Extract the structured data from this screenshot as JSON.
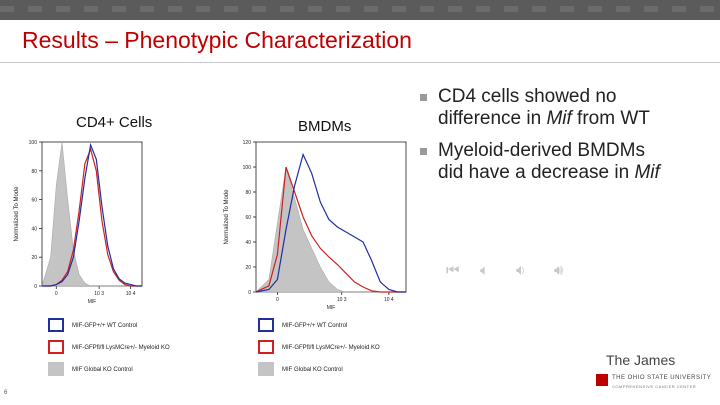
{
  "slide": {
    "title": "Results – Phenotypic Characterization",
    "number": "6"
  },
  "panels": {
    "left_label": "CD4+ Cells",
    "right_label": "BMDMs"
  },
  "bullets": [
    {
      "text": "CD4 cells showed no\ndifference in ",
      "emph": "Mif",
      "tail": " from WT"
    },
    {
      "text": "Myeloid-derived BMDMs\ndid have a decrease in ",
      "emph": "Mif",
      "tail": ""
    }
  ],
  "chart_data": [
    {
      "type": "area",
      "ylabel": "Normalized To Mode",
      "xlabel": "MIF",
      "xscale": "log",
      "x_ticks": [
        "0",
        "10 3",
        "10 4"
      ],
      "y_ticks": [
        "0",
        "20",
        "40",
        "60",
        "80",
        "100"
      ],
      "ylim": [
        0,
        100
      ],
      "x": [
        -0.5,
        -0.2,
        0.0,
        0.2,
        0.4,
        0.6,
        0.8,
        1.0,
        1.2,
        1.4,
        1.6,
        1.8,
        2.0,
        2.2,
        2.4,
        2.6,
        2.8,
        3.0
      ],
      "series": [
        {
          "name": "MIF-GFP+/+ WT Control",
          "color": "#1f2fa0",
          "values": [
            0,
            0,
            1,
            3,
            8,
            20,
            45,
            75,
            98,
            88,
            55,
            28,
            12,
            5,
            2,
            1,
            0,
            0
          ]
        },
        {
          "name": "MIF-GFPfl/fl LysMCre+/- Myeloid KO",
          "color": "#d11f1f",
          "values": [
            0,
            0,
            1,
            4,
            10,
            25,
            52,
            85,
            95,
            80,
            45,
            22,
            10,
            4,
            1,
            0,
            0,
            0
          ]
        },
        {
          "name": "MIF Global KO Control",
          "color": "#c4c4c4",
          "values": [
            0,
            20,
            70,
            100,
            60,
            25,
            8,
            2,
            0,
            0,
            0,
            0,
            0,
            0,
            0,
            0,
            0,
            0
          ]
        }
      ]
    },
    {
      "type": "area",
      "ylabel": "Normalized To Mode",
      "xlabel": "MIF",
      "xscale": "log",
      "x_ticks": [
        "0",
        "10 3",
        "10 4"
      ],
      "y_ticks": [
        "0",
        "20",
        "40",
        "60",
        "80",
        "100",
        "120"
      ],
      "ylim": [
        0,
        120
      ],
      "x": [
        -0.5,
        -0.2,
        0.0,
        0.2,
        0.4,
        0.6,
        0.8,
        1.0,
        1.2,
        1.4,
        1.6,
        1.8,
        2.0,
        2.2,
        2.4,
        2.6,
        2.8,
        3.0
      ],
      "series": [
        {
          "name": "MIF-GFP+/+ WT Control",
          "color": "#1f2fa0",
          "values": [
            0,
            2,
            10,
            50,
            85,
            110,
            95,
            72,
            58,
            52,
            48,
            44,
            40,
            25,
            8,
            2,
            0,
            0
          ]
        },
        {
          "name": "MIF-GFPfl/fl LysMCre+/- Myeloid KO",
          "color": "#d11f1f",
          "values": [
            0,
            5,
            30,
            100,
            80,
            60,
            45,
            35,
            28,
            22,
            15,
            8,
            4,
            1,
            0,
            0,
            0,
            0
          ]
        },
        {
          "name": "MIF Global KO Control",
          "color": "#c4c4c4",
          "values": [
            0,
            10,
            55,
            100,
            75,
            50,
            35,
            20,
            8,
            2,
            0,
            0,
            0,
            0,
            0,
            0,
            0,
            0
          ]
        }
      ]
    }
  ],
  "legend": [
    {
      "label": "MIF-GFP+/+ WT Control",
      "color": "#1f2fa0",
      "filled": false
    },
    {
      "label": "MIF-GFPfl/fl LysMCre+/- Myeloid KO",
      "color": "#d11f1f",
      "filled": false
    },
    {
      "label": "MIF Global KO Control",
      "color": "#c4c4c4",
      "filled": true
    }
  ],
  "branding": {
    "name": "The James",
    "osu": "THE OHIO STATE UNIVERSITY",
    "sub": "COMPREHENSIVE CANCER CENTER"
  },
  "media_controls": {
    "icons": [
      "rewind-icon",
      "audio-icon",
      "audio-icon",
      "audio-icon"
    ]
  }
}
